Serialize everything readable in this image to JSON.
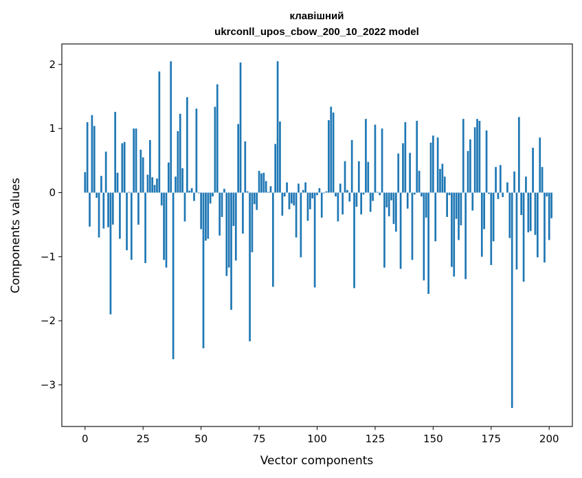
{
  "chart_data": {
    "type": "bar",
    "title": "клавішний",
    "subtitle": "ukrconll_upos_cbow_200_10_2022 model",
    "xlabel": "Vector components",
    "ylabel": "Components values",
    "xlim": [
      -10,
      210
    ],
    "ylim": [
      -3.65,
      2.32
    ],
    "xticks": [
      0,
      25,
      50,
      75,
      100,
      125,
      150,
      175,
      200
    ],
    "yticks": [
      -3,
      -2,
      -1,
      0,
      1,
      2
    ],
    "bar_color": "#1f77b4",
    "grid": false,
    "values": [
      0.32,
      1.1,
      -0.53,
      1.21,
      1.04,
      -0.08,
      -0.7,
      0.26,
      -0.56,
      0.64,
      -0.54,
      -1.9,
      -0.5,
      1.26,
      0.31,
      -0.72,
      0.77,
      0.79,
      -0.9,
      0.01,
      -1.05,
      1.0,
      1.0,
      -0.5,
      0.67,
      0.55,
      -1.1,
      0.28,
      0.82,
      0.24,
      0.12,
      0.22,
      1.89,
      -0.2,
      -1.05,
      -1.17,
      0.47,
      2.05,
      -2.6,
      0.25,
      0.96,
      1.23,
      0.38,
      -0.45,
      1.49,
      0.03,
      0.07,
      -0.13,
      1.31,
      -0.01,
      -0.57,
      -2.43,
      -0.75,
      -0.72,
      -0.17,
      -0.06,
      1.34,
      1.69,
      -0.67,
      -0.38,
      0.06,
      -1.3,
      -1.17,
      -1.83,
      -0.52,
      -1.06,
      1.07,
      2.03,
      -0.64,
      0.8,
      0.02,
      -2.32,
      -0.93,
      -0.18,
      -0.27,
      0.34,
      0.3,
      0.31,
      0.18,
      0.01,
      0.1,
      -1.47,
      0.76,
      2.05,
      1.11,
      -0.36,
      -0.06,
      0.16,
      -0.26,
      -0.17,
      -0.2,
      -0.7,
      0.14,
      -1.01,
      0.04,
      0.16,
      -0.44,
      -0.26,
      -0.09,
      -1.48,
      -0.04,
      0.07,
      -0.39,
      -0.01,
      0.02,
      1.13,
      1.34,
      1.25,
      -0.06,
      -0.45,
      0.14,
      -0.34,
      0.49,
      0.04,
      -0.14,
      0.82,
      -1.49,
      -0.22,
      0.49,
      -0.34,
      -0.03,
      1.15,
      0.48,
      -0.3,
      -0.13,
      1.06,
      0.01,
      -0.04,
      1.0,
      -1.17,
      -0.23,
      -0.37,
      -0.12,
      -0.49,
      -0.61,
      0.61,
      -1.19,
      0.77,
      1.1,
      -0.25,
      0.62,
      -1.05,
      -0.03,
      1.12,
      0.34,
      -0.06,
      -1.37,
      -0.39,
      -1.58,
      0.78,
      0.89,
      -0.76,
      0.86,
      0.37,
      0.45,
      0.25,
      -0.38,
      -0.04,
      -1.16,
      -1.31,
      -0.41,
      -0.74,
      -0.51,
      1.15,
      -1.35,
      0.65,
      0.83,
      -0.28,
      1.02,
      1.15,
      1.12,
      -1.0,
      -0.57,
      0.97,
      -0.02,
      -1.13,
      -0.76,
      0.4,
      -0.1,
      0.43,
      -0.07,
      0.0,
      0.16,
      -0.71,
      -3.36,
      0.33,
      -1.2,
      1.18,
      -0.35,
      -1.39,
      0.25,
      -0.62,
      -0.6,
      0.7,
      -0.66,
      -1.01,
      0.86,
      0.4,
      -1.09,
      -0.06,
      -0.74,
      -0.4
    ]
  }
}
